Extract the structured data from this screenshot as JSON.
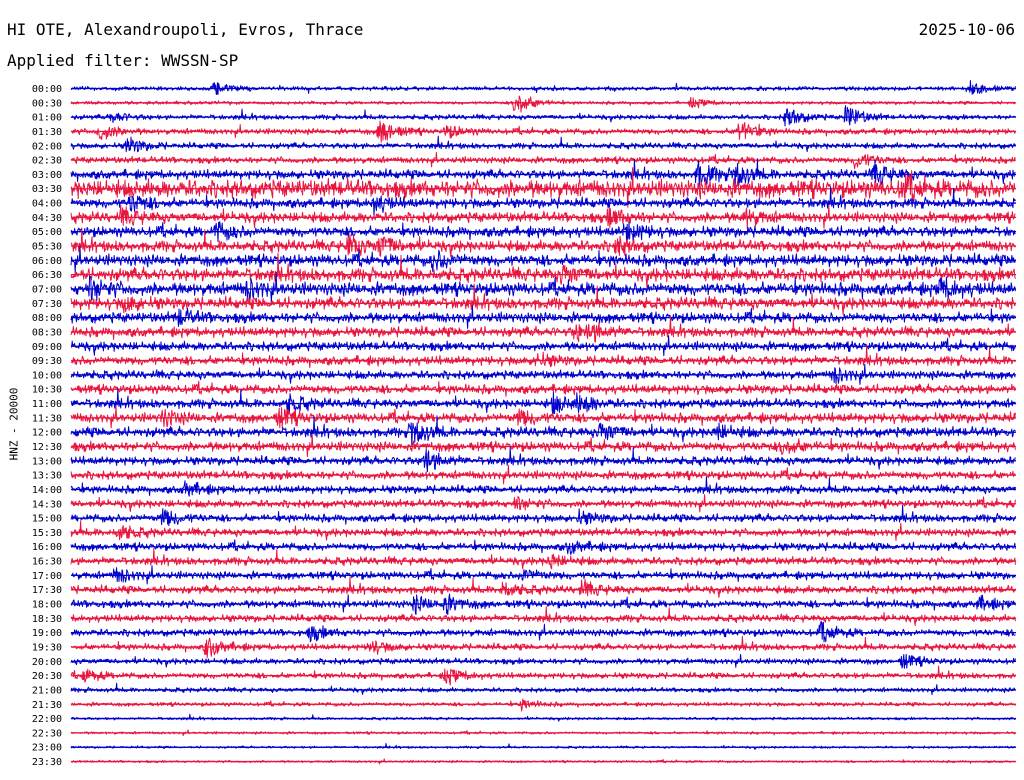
{
  "header": {
    "station": "HI OTE, Alexandroupoli, Evros, Thrace",
    "date": "2025-10-06",
    "filter_prefix": "Applied filter:",
    "filter_name": "WWSSN-SP"
  },
  "colors": {
    "even_trace": "#0000cc",
    "odd_trace": "#e8153f",
    "text": "#000000"
  },
  "chart_data": {
    "type": "line",
    "subtype": "helicorder",
    "ylabel": "HNZ - 20000",
    "rows": [
      "00:00",
      "00:30",
      "01:00",
      "01:30",
      "02:00",
      "02:30",
      "03:00",
      "03:30",
      "04:00",
      "04:30",
      "05:00",
      "05:30",
      "06:00",
      "06:30",
      "07:00",
      "07:30",
      "08:00",
      "08:30",
      "09:00",
      "09:30",
      "10:00",
      "10:30",
      "11:00",
      "11:30",
      "12:00",
      "12:30",
      "13:00",
      "13:30",
      "14:00",
      "14:30",
      "15:00",
      "15:30",
      "16:00",
      "16:30",
      "17:00",
      "17:30",
      "18:00",
      "18:30",
      "19:00",
      "19:30",
      "20:00",
      "20:30",
      "21:00",
      "21:30",
      "22:00",
      "22:30",
      "23:00",
      "23:30"
    ],
    "row_duration_minutes": 30,
    "trace_color_order": [
      "blue",
      "red"
    ],
    "noise_level": [
      0.12,
      0.1,
      0.15,
      0.18,
      0.18,
      0.2,
      0.28,
      0.55,
      0.3,
      0.32,
      0.32,
      0.34,
      0.36,
      0.4,
      0.4,
      0.36,
      0.32,
      0.3,
      0.28,
      0.28,
      0.26,
      0.28,
      0.28,
      0.3,
      0.3,
      0.3,
      0.26,
      0.26,
      0.24,
      0.24,
      0.24,
      0.24,
      0.24,
      0.24,
      0.24,
      0.24,
      0.24,
      0.22,
      0.22,
      0.2,
      0.18,
      0.18,
      0.14,
      0.12,
      0.08,
      0.08,
      0.07,
      0.07
    ],
    "events": [
      {
        "row": "00:00",
        "minute": 4.5,
        "amplitude": 0.8
      },
      {
        "row": "00:00",
        "minute": 28.5,
        "amplitude": 0.7
      },
      {
        "row": "00:30",
        "minute": 14.1,
        "amplitude": 1.3
      },
      {
        "row": "00:30",
        "minute": 19.7,
        "amplitude": 0.5
      },
      {
        "row": "01:00",
        "minute": 22.7,
        "amplitude": 1.0
      },
      {
        "row": "01:00",
        "minute": 24.6,
        "amplitude": 1.2
      },
      {
        "row": "01:00",
        "minute": 1.3,
        "amplitude": 0.5
      },
      {
        "row": "01:30",
        "minute": 0.9,
        "amplitude": 0.8
      },
      {
        "row": "01:30",
        "minute": 9.8,
        "amplitude": 1.2
      },
      {
        "row": "01:30",
        "minute": 21.2,
        "amplitude": 1.0
      },
      {
        "row": "01:30",
        "minute": 11.9,
        "amplitude": 0.6
      },
      {
        "row": "02:00",
        "minute": 1.8,
        "amplitude": 0.8
      },
      {
        "row": "02:30",
        "minute": 24.9,
        "amplitude": 0.8
      },
      {
        "row": "03:00",
        "minute": 19.9,
        "amplitude": 1.2
      },
      {
        "row": "03:00",
        "minute": 21.1,
        "amplitude": 1.1
      },
      {
        "row": "03:00",
        "minute": 25.5,
        "amplitude": 1.0
      },
      {
        "row": "03:30",
        "minute": 26.4,
        "amplitude": 0.7
      },
      {
        "row": "04:00",
        "minute": 1.9,
        "amplitude": 0.8
      },
      {
        "row": "04:00",
        "minute": 9.6,
        "amplitude": 0.8
      },
      {
        "row": "04:30",
        "minute": 1.6,
        "amplitude": 0.7
      },
      {
        "row": "04:30",
        "minute": 17.1,
        "amplitude": 0.9
      },
      {
        "row": "04:30",
        "minute": 21.4,
        "amplitude": 0.7
      },
      {
        "row": "05:00",
        "minute": 4.6,
        "amplitude": 0.8
      },
      {
        "row": "05:00",
        "minute": 17.6,
        "amplitude": 0.9
      },
      {
        "row": "05:30",
        "minute": 8.8,
        "amplitude": 0.9
      },
      {
        "row": "05:30",
        "minute": 9.8,
        "amplitude": 0.9
      },
      {
        "row": "05:30",
        "minute": 17.3,
        "amplitude": 0.7
      },
      {
        "row": "06:00",
        "minute": 11.5,
        "amplitude": 0.8
      },
      {
        "row": "06:30",
        "minute": 15.6,
        "amplitude": 0.8
      },
      {
        "row": "07:00",
        "minute": 0.6,
        "amplitude": 1.0
      },
      {
        "row": "07:00",
        "minute": 5.6,
        "amplitude": 0.8
      },
      {
        "row": "07:00",
        "minute": 27.6,
        "amplitude": 0.9
      },
      {
        "row": "07:30",
        "minute": 1.7,
        "amplitude": 0.6
      },
      {
        "row": "08:00",
        "minute": 3.4,
        "amplitude": 0.7
      },
      {
        "row": "08:30",
        "minute": 16.0,
        "amplitude": 0.7
      },
      {
        "row": "08:30",
        "minute": 16.5,
        "amplitude": 0.6
      },
      {
        "row": "09:30",
        "minute": 14.8,
        "amplitude": 0.6
      },
      {
        "row": "10:00",
        "minute": 24.2,
        "amplitude": 0.7
      },
      {
        "row": "11:00",
        "minute": 15.3,
        "amplitude": 0.8
      },
      {
        "row": "11:00",
        "minute": 16.1,
        "amplitude": 0.8
      },
      {
        "row": "11:00",
        "minute": 6.9,
        "amplitude": 0.7
      },
      {
        "row": "11:30",
        "minute": 2.9,
        "amplitude": 0.7
      },
      {
        "row": "11:30",
        "minute": 6.6,
        "amplitude": 0.9
      },
      {
        "row": "11:30",
        "minute": 14.2,
        "amplitude": 0.7
      },
      {
        "row": "12:00",
        "minute": 10.8,
        "amplitude": 1.2
      },
      {
        "row": "12:00",
        "minute": 16.8,
        "amplitude": 0.9
      },
      {
        "row": "12:00",
        "minute": 20.5,
        "amplitude": 0.7
      },
      {
        "row": "12:30",
        "minute": 22.6,
        "amplitude": 0.7
      },
      {
        "row": "13:00",
        "minute": 11.2,
        "amplitude": 1.1
      },
      {
        "row": "14:00",
        "minute": 3.6,
        "amplitude": 0.7
      },
      {
        "row": "14:30",
        "minute": 14.1,
        "amplitude": 0.6
      },
      {
        "row": "15:00",
        "minute": 2.9,
        "amplitude": 0.8
      },
      {
        "row": "15:00",
        "minute": 16.1,
        "amplitude": 0.6
      },
      {
        "row": "15:30",
        "minute": 1.5,
        "amplitude": 0.7
      },
      {
        "row": "16:00",
        "minute": 15.8,
        "amplitude": 0.6
      },
      {
        "row": "16:30",
        "minute": 15.2,
        "amplitude": 0.6
      },
      {
        "row": "17:00",
        "minute": 1.4,
        "amplitude": 0.7
      },
      {
        "row": "17:00",
        "minute": 14.3,
        "amplitude": 0.6
      },
      {
        "row": "17:30",
        "minute": 13.7,
        "amplitude": 0.7
      },
      {
        "row": "17:30",
        "minute": 16.2,
        "amplitude": 0.7
      },
      {
        "row": "18:00",
        "minute": 10.9,
        "amplitude": 0.7
      },
      {
        "row": "18:00",
        "minute": 11.9,
        "amplitude": 0.7
      },
      {
        "row": "18:00",
        "minute": 28.8,
        "amplitude": 0.6
      },
      {
        "row": "19:00",
        "minute": 7.6,
        "amplitude": 0.7
      },
      {
        "row": "19:00",
        "minute": 23.8,
        "amplitude": 0.8
      },
      {
        "row": "19:30",
        "minute": 4.3,
        "amplitude": 1.0
      },
      {
        "row": "19:30",
        "minute": 9.5,
        "amplitude": 0.6
      },
      {
        "row": "20:00",
        "minute": 26.4,
        "amplitude": 0.7
      },
      {
        "row": "20:30",
        "minute": 11.9,
        "amplitude": 0.8
      },
      {
        "row": "20:30",
        "minute": 0.4,
        "amplitude": 0.6
      },
      {
        "row": "21:30",
        "minute": 14.3,
        "amplitude": 0.5
      }
    ],
    "grid": false,
    "legend": "none"
  }
}
